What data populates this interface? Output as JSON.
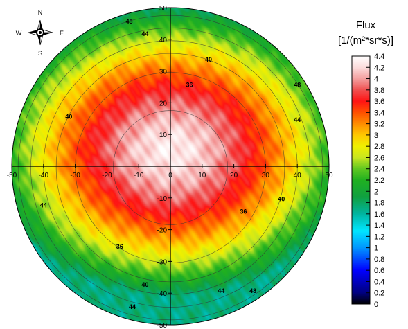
{
  "chart_data": {
    "type": "heatmap",
    "projection": "polar",
    "x_range": [
      -50,
      50
    ],
    "y_range": [
      -50,
      50
    ],
    "x_ticks": [
      "-50",
      "-40",
      "-30",
      "-20",
      "-10",
      "0",
      "10",
      "20",
      "30",
      "40",
      "50"
    ],
    "y_ticks": [
      "50",
      "40",
      "30",
      "20",
      "10",
      "0",
      "-10",
      "-20",
      "-30",
      "-40",
      "-50"
    ],
    "contour_rings": [
      18,
      30,
      36,
      40,
      44,
      48
    ],
    "contour_labels": [
      {
        "text": "48",
        "x": -13,
        "y": 45
      },
      {
        "text": "44",
        "x": -8,
        "y": 41
      },
      {
        "text": "40",
        "x": 12,
        "y": 33
      },
      {
        "text": "36",
        "x": 6,
        "y": 25
      },
      {
        "text": "40",
        "x": -32,
        "y": 15
      },
      {
        "text": "48",
        "x": 40,
        "y": 25
      },
      {
        "text": "44",
        "x": 40,
        "y": 14
      },
      {
        "text": "40",
        "x": 35,
        "y": -11
      },
      {
        "text": "36",
        "x": 23,
        "y": -15
      },
      {
        "text": "36",
        "x": -16,
        "y": -26
      },
      {
        "text": "44",
        "x": -40,
        "y": -13
      },
      {
        "text": "40",
        "x": -8,
        "y": -38
      },
      {
        "text": "44",
        "x": 16,
        "y": -40
      },
      {
        "text": "48",
        "x": 26,
        "y": -40
      },
      {
        "text": "44",
        "x": -12,
        "y": -45
      }
    ],
    "field_model": {
      "peak_center": [
        0,
        5
      ],
      "peak_value": 4.3,
      "edge_value": 1.7
    },
    "legend": {
      "title_line1": "Flux",
      "title_line2": "[1/(m²*sr*s)]",
      "min": 0,
      "max": 4.4,
      "labels": [
        "4.4",
        "4.2",
        "4",
        "3.8",
        "3.6",
        "3.4",
        "3.2",
        "3",
        "2.8",
        "2.6",
        "2.4",
        "2.2",
        "2",
        "1.8",
        "1.6",
        "1.4",
        "1.2",
        "1",
        "0.8",
        "0.6",
        "0.4",
        "0.2",
        "0"
      ],
      "color_stops": [
        {
          "v": 0,
          "c": "#000000"
        },
        {
          "v": 0.2,
          "c": "#000080"
        },
        {
          "v": 0.6,
          "c": "#0000ff"
        },
        {
          "v": 1.0,
          "c": "#0096ff"
        },
        {
          "v": 1.3,
          "c": "#00e6ff"
        },
        {
          "v": 1.6,
          "c": "#00b4a0"
        },
        {
          "v": 1.9,
          "c": "#10a040"
        },
        {
          "v": 2.2,
          "c": "#20b020"
        },
        {
          "v": 2.4,
          "c": "#60c820"
        },
        {
          "v": 2.6,
          "c": "#c8e620"
        },
        {
          "v": 2.8,
          "c": "#f0f000"
        },
        {
          "v": 3.0,
          "c": "#ffc800"
        },
        {
          "v": 3.2,
          "c": "#ff8c00"
        },
        {
          "v": 3.4,
          "c": "#ff5000"
        },
        {
          "v": 3.6,
          "c": "#ff1414"
        },
        {
          "v": 3.8,
          "c": "#f05050"
        },
        {
          "v": 4.0,
          "c": "#f4a0a0"
        },
        {
          "v": 4.2,
          "c": "#fcdcdc"
        },
        {
          "v": 4.4,
          "c": "#ffffff"
        }
      ]
    }
  },
  "compass": {
    "n": "N",
    "s": "S",
    "e": "E",
    "w": "W"
  }
}
